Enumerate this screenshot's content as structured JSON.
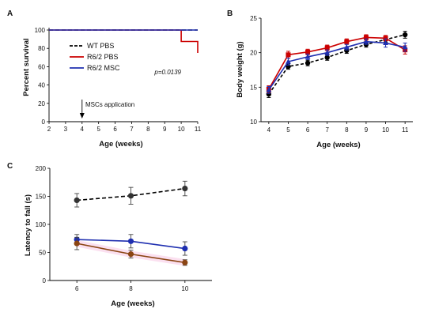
{
  "chart_data": [
    {
      "panel": "A",
      "type": "line",
      "xlabel": "Age (weeks)",
      "ylabel": "Percent survival",
      "xlim": [
        2,
        11
      ],
      "ylim": [
        0,
        100
      ],
      "xticks": [
        "2",
        "3",
        "4",
        "5",
        "6",
        "7",
        "8",
        "9",
        "10",
        "11"
      ],
      "yticks": [
        "0",
        "20",
        "40",
        "60",
        "80",
        "100"
      ],
      "series": [
        {
          "name": "WT PBS",
          "color": "#000000",
          "style": "dashed",
          "x": [
            2,
            11
          ],
          "y": [
            100,
            100
          ]
        },
        {
          "name": "R6/2 PBS",
          "color": "#cc0000",
          "style": "solid",
          "x": [
            2,
            10,
            10,
            11,
            11
          ],
          "y": [
            100,
            100,
            87.5,
            87.5,
            75
          ]
        },
        {
          "name": "R6/2 MSC",
          "color": "#1f2fb0",
          "style": "solid",
          "x": [
            2,
            11
          ],
          "y": [
            100,
            100
          ]
        }
      ],
      "annotations": {
        "pvalue": "p=0.0139",
        "arrow_label": "MSCs application",
        "arrow_x": 4
      },
      "legend_position": "center-left",
      "grid": false
    },
    {
      "panel": "B",
      "type": "line",
      "xlabel": "Age (weeks)",
      "ylabel": "Body weight (g)",
      "xlim": [
        4,
        11
      ],
      "ylim": [
        10,
        25
      ],
      "xticks": [
        "4",
        "5",
        "6",
        "7",
        "8",
        "9",
        "10",
        "11"
      ],
      "yticks": [
        "10",
        "15",
        "20",
        "25"
      ],
      "x": [
        4,
        5,
        6,
        7,
        8,
        9,
        10,
        11
      ],
      "series": [
        {
          "color": "#000000",
          "style": "dashed",
          "marker": "circle",
          "values": [
            14.0,
            18.0,
            18.5,
            19.3,
            20.3,
            21.2,
            21.9,
            22.6
          ],
          "err": [
            0.5,
            0.4,
            0.4,
            0.4,
            0.4,
            0.4,
            0.4,
            0.5
          ]
        },
        {
          "color": "#cc0000",
          "style": "solid",
          "marker": "square",
          "values": [
            14.7,
            19.7,
            20.1,
            20.7,
            21.6,
            22.2,
            22.1,
            20.4
          ],
          "err": [
            0.5,
            0.5,
            0.4,
            0.4,
            0.4,
            0.4,
            0.4,
            0.6
          ]
        },
        {
          "color": "#1f2fb0",
          "style": "solid",
          "marker": "triangle",
          "values": [
            14.6,
            18.7,
            19.4,
            20.0,
            20.8,
            21.6,
            21.4,
            20.8
          ],
          "err": [
            0.5,
            0.5,
            0.4,
            0.4,
            0.4,
            0.4,
            0.6,
            0.6
          ]
        }
      ],
      "grid": false
    },
    {
      "panel": "C",
      "type": "line",
      "xlabel": "Age (weeks)",
      "ylabel": "Latency to fall (s)",
      "xlim": [
        5,
        11
      ],
      "ylim": [
        0,
        200
      ],
      "xticks": [
        "6",
        "8",
        "10"
      ],
      "yticks": [
        "0",
        "50",
        "100",
        "150",
        "200"
      ],
      "x": [
        6,
        8,
        10
      ],
      "series": [
        {
          "color": "#000000",
          "style": "dashed",
          "values": [
            143,
            151,
            164
          ],
          "err": [
            12,
            15,
            13
          ]
        },
        {
          "color": "#1f2fb0",
          "style": "solid",
          "values": [
            73,
            70,
            57
          ],
          "err": [
            9,
            12,
            12
          ]
        },
        {
          "color": "#8b4513",
          "style": "solid",
          "values": [
            66,
            47,
            32
          ],
          "err": [
            11,
            7,
            5
          ]
        }
      ],
      "grid": false
    }
  ]
}
